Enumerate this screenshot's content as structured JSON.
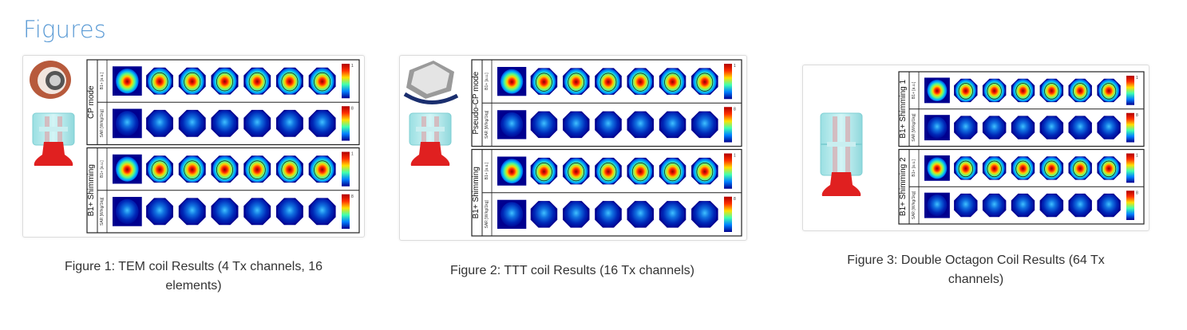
{
  "section": {
    "title": "Figures"
  },
  "figures": [
    {
      "caption": "Figure 1: TEM coil Results (4 Tx channels, 16 elements)",
      "groups": [
        {
          "label": "CP mode",
          "rows": [
            {
              "label": "B1+ [a.u.]",
              "scale": "1"
            },
            {
              "label": "SAR [W/kg/1kg]",
              "scale": "8"
            }
          ]
        },
        {
          "label": "B1+ Shimming",
          "rows": [
            {
              "label": "B1+ [a.u.]",
              "scale": "1"
            },
            {
              "label": "SAR [W/kg/1kg]",
              "scale": "8"
            }
          ]
        }
      ]
    },
    {
      "caption": "Figure 2: TTT coil Results (16 Tx channels)",
      "groups": [
        {
          "label": "Pseudo-CP mode",
          "rows": [
            {
              "label": "B1+ [a.u.]",
              "scale": "1"
            },
            {
              "label": "SAR [W/kg/1kg]",
              "scale": "8"
            }
          ]
        },
        {
          "label": "B1+ Shimming",
          "rows": [
            {
              "label": "B1+ [a.u.]",
              "scale": "1"
            },
            {
              "label": "SAR [W/kg/1kg]",
              "scale": "8"
            }
          ]
        }
      ]
    },
    {
      "caption": "Figure 3: Double Octagon Coil Results (64 Tx channels)",
      "groups": [
        {
          "label": "B1+ Shimming 1",
          "rows": [
            {
              "label": "B1+ [a.u.]",
              "scale": "1"
            },
            {
              "label": "SAR [W/kg/1kg]",
              "scale": "8"
            }
          ]
        },
        {
          "label": "B1+ Shimming 2",
          "rows": [
            {
              "label": "B1+ [a.u.]",
              "scale": "1"
            },
            {
              "label": "SAR [W/kg/1kg]",
              "scale": "8"
            }
          ]
        }
      ]
    }
  ],
  "colors": {
    "heading": "#5b9bd5",
    "caption": "#333333",
    "map_low": "#00008f",
    "map_high": "#b00000",
    "coil_red": "#e02020",
    "coil_cyan": "#a8e4e6"
  }
}
